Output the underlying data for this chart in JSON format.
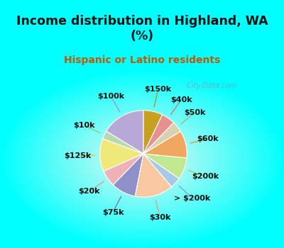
{
  "title": "Income distribution in Highland, WA\n(%)",
  "subtitle": "Hispanic or Latino residents",
  "title_color": "#111111",
  "subtitle_color": "#cc5500",
  "bg_cyan": "#00ffff",
  "labels": [
    "$100k",
    "$10k",
    "$125k",
    "$20k",
    "$75k",
    "$30k",
    "> $200k",
    "$200k",
    "$60k",
    "$50k",
    "$40k",
    "$150k"
  ],
  "sizes": [
    16,
    3,
    12,
    6,
    9,
    14,
    4,
    8,
    10,
    4,
    5,
    7
  ],
  "colors": [
    "#b8a8d8",
    "#b8d8b0",
    "#f0e878",
    "#f0b0b8",
    "#9090c8",
    "#f8c8a0",
    "#a8c8e8",
    "#c0e890",
    "#f0a860",
    "#d8d0b0",
    "#e89090",
    "#c8a020"
  ],
  "startangle": 90,
  "label_fontsize": 8,
  "label_fontweight": "bold",
  "label_color": "#111111",
  "watermark": " City-Data.com",
  "wedge_edge_color": "white",
  "wedge_linewidth": 0.8
}
